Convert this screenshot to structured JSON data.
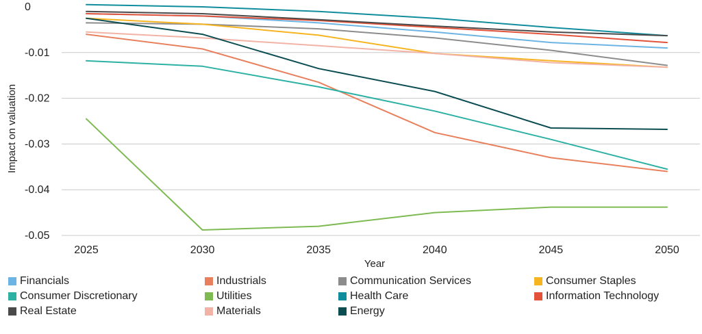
{
  "chart_data": {
    "type": "line",
    "xlabel": "Year",
    "ylabel": "Impact on valuation",
    "x": [
      2025,
      2030,
      2035,
      2040,
      2045,
      2050
    ],
    "ylim": [
      -0.05,
      0
    ],
    "y_ticks": [
      0,
      -0.01,
      -0.02,
      -0.03,
      -0.04,
      -0.05
    ],
    "y_tick_labels": [
      "0",
      "-0.01",
      "-0.02",
      "-0.03",
      "-0.04",
      "-0.05"
    ],
    "x_tick_labels": [
      "2025",
      "2030",
      "2035",
      "2040",
      "2045",
      "2050"
    ],
    "grid": "horizontal",
    "legend_position": "bottom",
    "series": [
      {
        "name": "Financials",
        "color": "#6cb4e4",
        "values": [
          -0.0015,
          -0.002,
          -0.0035,
          -0.0055,
          -0.0078,
          -0.009
        ]
      },
      {
        "name": "Industrials",
        "color": "#e8805e",
        "values": [
          -0.006,
          -0.0092,
          -0.0165,
          -0.0275,
          -0.033,
          -0.036
        ]
      },
      {
        "name": "Communication Services",
        "color": "#8c8c8c",
        "values": [
          -0.0035,
          -0.0038,
          -0.0048,
          -0.0068,
          -0.0095,
          -0.0128
        ]
      },
      {
        "name": "Consumer Staples",
        "color": "#f6b420",
        "values": [
          -0.0025,
          -0.0038,
          -0.0062,
          -0.0102,
          -0.0118,
          -0.0132
        ]
      },
      {
        "name": "Consumer Discretionary",
        "color": "#2cb1a4",
        "values": [
          -0.0118,
          -0.013,
          -0.0175,
          -0.0228,
          -0.029,
          -0.0355
        ]
      },
      {
        "name": "Utilities",
        "color": "#7dbb52",
        "values": [
          -0.0245,
          -0.0488,
          -0.048,
          -0.045,
          -0.0438,
          -0.0438
        ]
      },
      {
        "name": "Health Care",
        "color": "#108d9c",
        "values": [
          0.0005,
          0.0,
          -0.001,
          -0.0025,
          -0.0045,
          -0.0063
        ]
      },
      {
        "name": "Information Technology",
        "color": "#e2533a",
        "values": [
          -0.0015,
          -0.002,
          -0.003,
          -0.0045,
          -0.006,
          -0.0078
        ]
      },
      {
        "name": "Real Estate",
        "color": "#4a4a4a",
        "values": [
          -0.001,
          -0.0015,
          -0.0028,
          -0.0042,
          -0.0055,
          -0.0063
        ]
      },
      {
        "name": "Materials",
        "color": "#f2b3a6",
        "values": [
          -0.0055,
          -0.0068,
          -0.0085,
          -0.0102,
          -0.0122,
          -0.0132
        ]
      },
      {
        "name": "Energy",
        "color": "#0c4d52",
        "values": [
          -0.0025,
          -0.006,
          -0.0135,
          -0.0185,
          -0.0265,
          -0.0268
        ]
      }
    ]
  }
}
